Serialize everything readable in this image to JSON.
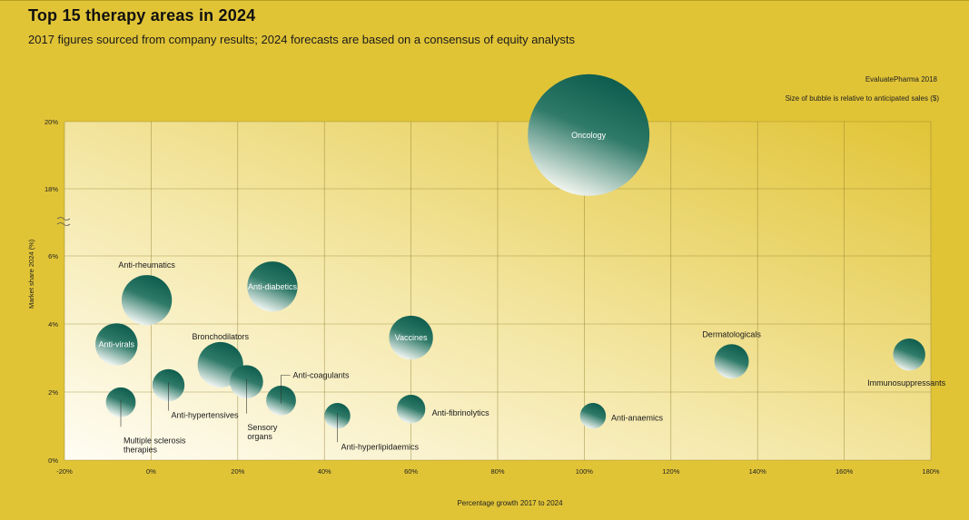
{
  "header": {
    "title": "Top 15 therapy areas in 2024",
    "subtitle": "2017 figures sourced from company results; 2024 forecasts are based on a consensus of equity analysts",
    "source": "EvaluatePharma 2018",
    "note": "Size of bubble is relative to anticipated sales ($)"
  },
  "colors": {
    "background": "#e1c436",
    "bubble_dark": "#0b5a4c",
    "bubble_light": "#ffffff",
    "grid": "#8c7a2a",
    "label_on_bubble": "#ffffff",
    "label_off_bubble": "#1a1a1a"
  },
  "chart_data": {
    "type": "scatter",
    "subtype": "bubble",
    "xlabel": "Percentage growth 2017 to 2024",
    "ylabel": "Market share 2024 (%)",
    "x_ticks": [
      "-20%",
      "0%",
      "20%",
      "40%",
      "60%",
      "80%",
      "100%",
      "120%",
      "140%",
      "160%",
      "180%"
    ],
    "x_tick_values": [
      -20,
      0,
      20,
      40,
      60,
      80,
      100,
      120,
      140,
      160,
      180
    ],
    "y_ticks": [
      "0%",
      "2%",
      "4%",
      "6%",
      "18%",
      "20%"
    ],
    "y_tick_values": [
      0,
      2,
      4,
      6,
      18,
      20
    ],
    "y_axis_break": "between 6% and 18%",
    "xlim": [
      -20,
      180
    ],
    "ylim": [
      0,
      20
    ],
    "grid": true,
    "series": [
      {
        "label": "Oncology",
        "x": 101,
        "y": 19.6,
        "size": 100
      },
      {
        "label": "Anti-rheumatics",
        "x": -1,
        "y": 4.7,
        "size": 17
      },
      {
        "label": "Anti-diabetics",
        "x": 28,
        "y": 5.1,
        "size": 17
      },
      {
        "label": "Anti-virals",
        "x": -8,
        "y": 3.4,
        "size": 12
      },
      {
        "label": "Vaccines",
        "x": 60,
        "y": 3.6,
        "size": 13
      },
      {
        "label": "Bronchodilators",
        "x": 16,
        "y": 2.8,
        "size": 14
      },
      {
        "label": "Anti-hypertensives",
        "x": 4,
        "y": 2.2,
        "size": 7
      },
      {
        "label": "Sensory organs",
        "x": 22,
        "y": 2.3,
        "size": 7.5
      },
      {
        "label": "Anti-coagulants",
        "x": 30,
        "y": 1.75,
        "size": 6
      },
      {
        "label": "Multiple sclerosis therapies",
        "x": -7,
        "y": 1.7,
        "size": 6
      },
      {
        "label": "Anti-hyperlipidaemics",
        "x": 43,
        "y": 1.3,
        "size": 4.5
      },
      {
        "label": "Anti-fibrinolytics",
        "x": 60,
        "y": 1.5,
        "size": 5.5
      },
      {
        "label": "Anti-anaemics",
        "x": 102,
        "y": 1.3,
        "size": 4.5
      },
      {
        "label": "Dermatologicals",
        "x": 134,
        "y": 2.9,
        "size": 8
      },
      {
        "label": "Immunosuppressants",
        "x": 175,
        "y": 3.1,
        "size": 7
      }
    ]
  }
}
